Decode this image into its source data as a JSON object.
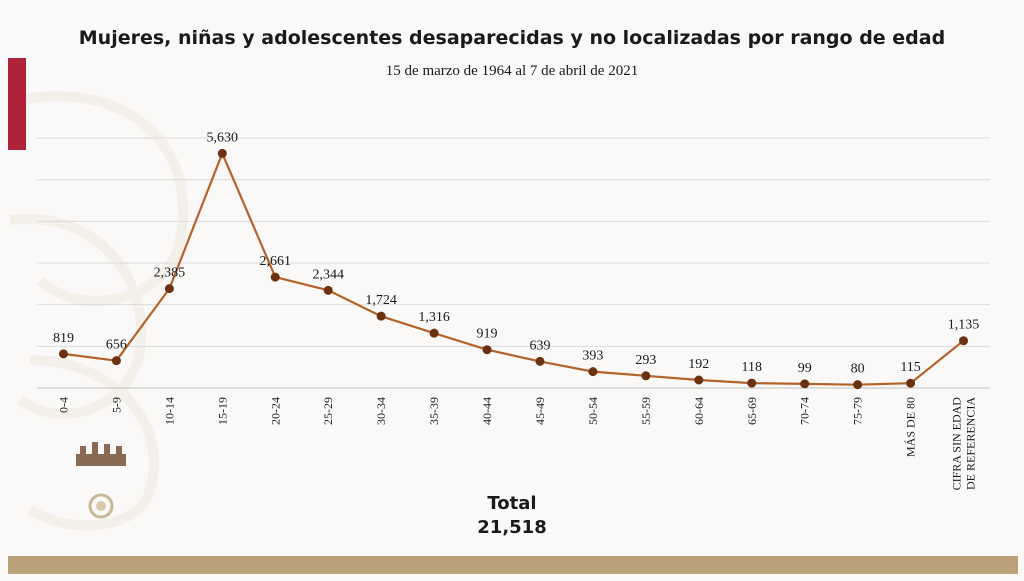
{
  "colors": {
    "accent": "#b0223a",
    "footer": "#b9a27a",
    "line": "#b5622a",
    "marker": "#6b3212",
    "grid": "#dcdcdc"
  },
  "total": {
    "label": "Total",
    "value": "21,518"
  },
  "chart_data": {
    "type": "line",
    "title": "Mujeres, niñas y adolescentes desaparecidas y no localizadas por rango de edad",
    "subtitle": "15 de marzo de 1964 al 7 de abril de 2021",
    "categories": [
      "0-4",
      "5-9",
      "10-14",
      "15-19",
      "20-24",
      "25-29",
      "30-34",
      "35-39",
      "40-44",
      "45-49",
      "50-54",
      "55-59",
      "60-64",
      "65-69",
      "70-74",
      "75-79",
      "MÁS DE 80",
      "CIFRA SIN EDAD DE REFERENCIA"
    ],
    "values": [
      819,
      656,
      2385,
      5630,
      2661,
      2344,
      1724,
      1316,
      919,
      639,
      393,
      293,
      192,
      118,
      99,
      80,
      115,
      1135
    ],
    "data_labels": [
      "819",
      "656",
      "2,385",
      "5,630",
      "2,661",
      "2,344",
      "1,724",
      "1,316",
      "919",
      "639",
      "393",
      "293",
      "192",
      "118",
      "99",
      "80",
      "115",
      "1,135"
    ],
    "ylim": [
      0,
      6000
    ],
    "grid": true,
    "legend": "none"
  }
}
